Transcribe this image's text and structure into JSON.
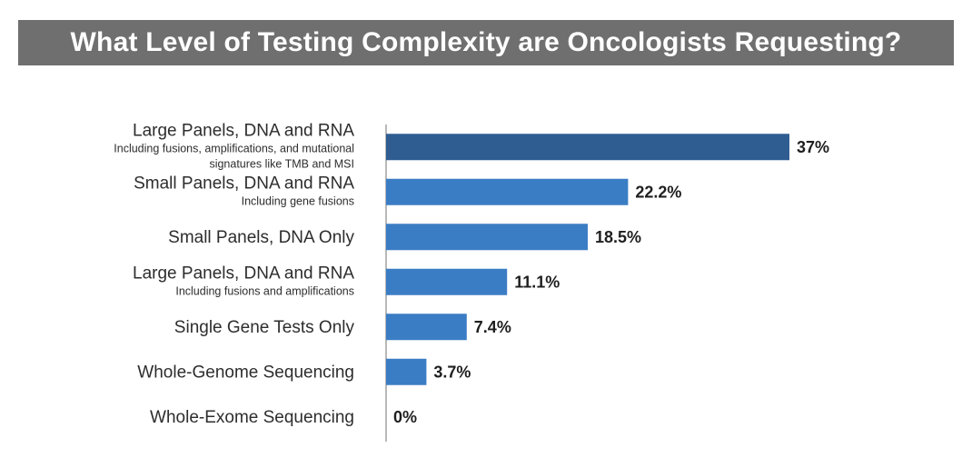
{
  "title": "What Level of Testing Complexity are Oncologists Requesting?",
  "colors": {
    "title_bg": "#6f6f6f",
    "highlight_bar": "#2f5d92",
    "bar": "#3b7dc4",
    "axis": "#888888"
  },
  "chart_data": {
    "type": "bar",
    "orientation": "horizontal",
    "title": "What Level of Testing Complexity are Oncologists Requesting?",
    "xlabel": "",
    "ylabel": "",
    "xlim": [
      0,
      37
    ],
    "unit": "%",
    "categories": [
      {
        "label": "Large Panels, DNA and RNA",
        "sublabel": [
          "Including fusions, amplifications, and mutational",
          "signatures like TMB and MSI"
        ],
        "value": 37,
        "value_label": "37%",
        "highlight": true
      },
      {
        "label": "Small Panels, DNA and RNA",
        "sublabel": [
          "Including gene fusions"
        ],
        "value": 22.2,
        "value_label": "22.2%",
        "highlight": false
      },
      {
        "label": "Small Panels, DNA Only",
        "sublabel": [],
        "value": 18.5,
        "value_label": "18.5%",
        "highlight": false
      },
      {
        "label": "Large Panels, DNA and RNA",
        "sublabel": [
          "Including fusions and amplifications"
        ],
        "value": 11.1,
        "value_label": "11.1%",
        "highlight": false
      },
      {
        "label": "Single Gene Tests Only",
        "sublabel": [],
        "value": 7.4,
        "value_label": "7.4%",
        "highlight": false
      },
      {
        "label": "Whole-Genome Sequencing",
        "sublabel": [],
        "value": 3.7,
        "value_label": "3.7%",
        "highlight": false
      },
      {
        "label": "Whole-Exome Sequencing",
        "sublabel": [],
        "value": 0,
        "value_label": "0%",
        "highlight": false
      }
    ]
  }
}
